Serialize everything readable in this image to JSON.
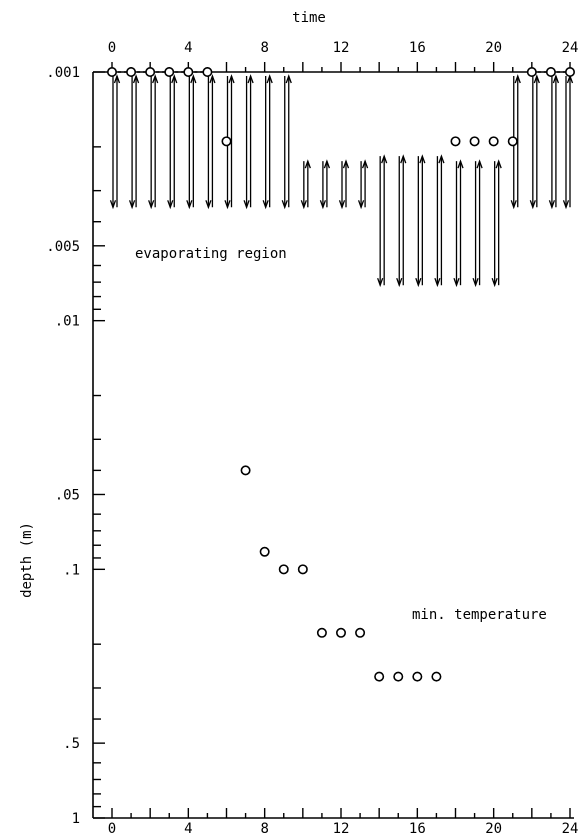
{
  "chart_data": {
    "type": "scatter",
    "title": "",
    "xlabel": "time",
    "ylabel": "depth  (m)",
    "xlim": [
      0,
      24
    ],
    "ylim": [
      0.001,
      1
    ],
    "yscale": "log",
    "y_inverted": true,
    "grid": false,
    "x_ticks": [
      0,
      4,
      8,
      12,
      16,
      20,
      24
    ],
    "x_tick_labels": [
      "0",
      "4",
      "8",
      "12",
      "16",
      "20",
      "24"
    ],
    "y_ticks": [
      0.001,
      0.005,
      0.01,
      0.05,
      0.1,
      0.5,
      1
    ],
    "y_tick_labels": [
      ".001",
      ".005",
      ".01",
      ".05",
      ".1",
      ".5",
      "1"
    ],
    "series": [
      {
        "name": "evaporating region",
        "marker": "arrow",
        "x": [
          0,
          1,
          2,
          3,
          4,
          5,
          6,
          7,
          8,
          9,
          10,
          11,
          12,
          13,
          14,
          15,
          16,
          17,
          18,
          19,
          20,
          21,
          22,
          23,
          24
        ],
        "top": [
          0.001,
          0.001,
          0.001,
          0.001,
          0.001,
          0.001,
          0.001,
          0.001,
          0.001,
          0.001,
          0.0022,
          0.0022,
          0.0022,
          0.0022,
          0.0021,
          0.0021,
          0.0021,
          0.0021,
          0.0022,
          0.0022,
          0.0022,
          0.001,
          0.001,
          0.001,
          0.001
        ],
        "bottom": [
          0.0035,
          0.0035,
          0.0035,
          0.0035,
          0.0035,
          0.0035,
          0.0035,
          0.0035,
          0.0035,
          0.0035,
          0.0035,
          0.0035,
          0.0035,
          0.0035,
          0.0072,
          0.0072,
          0.0072,
          0.0072,
          0.0072,
          0.0072,
          0.0072,
          0.0035,
          0.0035,
          0.0035,
          0.0035
        ]
      },
      {
        "name": "",
        "marker": "circle",
        "x": [
          0,
          1,
          2,
          3,
          4,
          5,
          6,
          18,
          19,
          20,
          21,
          22,
          23,
          24
        ],
        "y": [
          0.001,
          0.001,
          0.001,
          0.001,
          0.001,
          0.001,
          0.0019,
          0.0019,
          0.0019,
          0.0019,
          0.0019,
          0.001,
          0.001,
          0.001
        ]
      },
      {
        "name": "min. temperature",
        "marker": "circle",
        "x": [
          7,
          8,
          9,
          10,
          11,
          12,
          13,
          14,
          15,
          16,
          17
        ],
        "y": [
          0.04,
          0.085,
          0.1,
          0.1,
          0.18,
          0.18,
          0.18,
          0.27,
          0.27,
          0.27,
          0.27
        ]
      }
    ],
    "annotations": [
      "evaporating region",
      "min. temperature"
    ]
  }
}
